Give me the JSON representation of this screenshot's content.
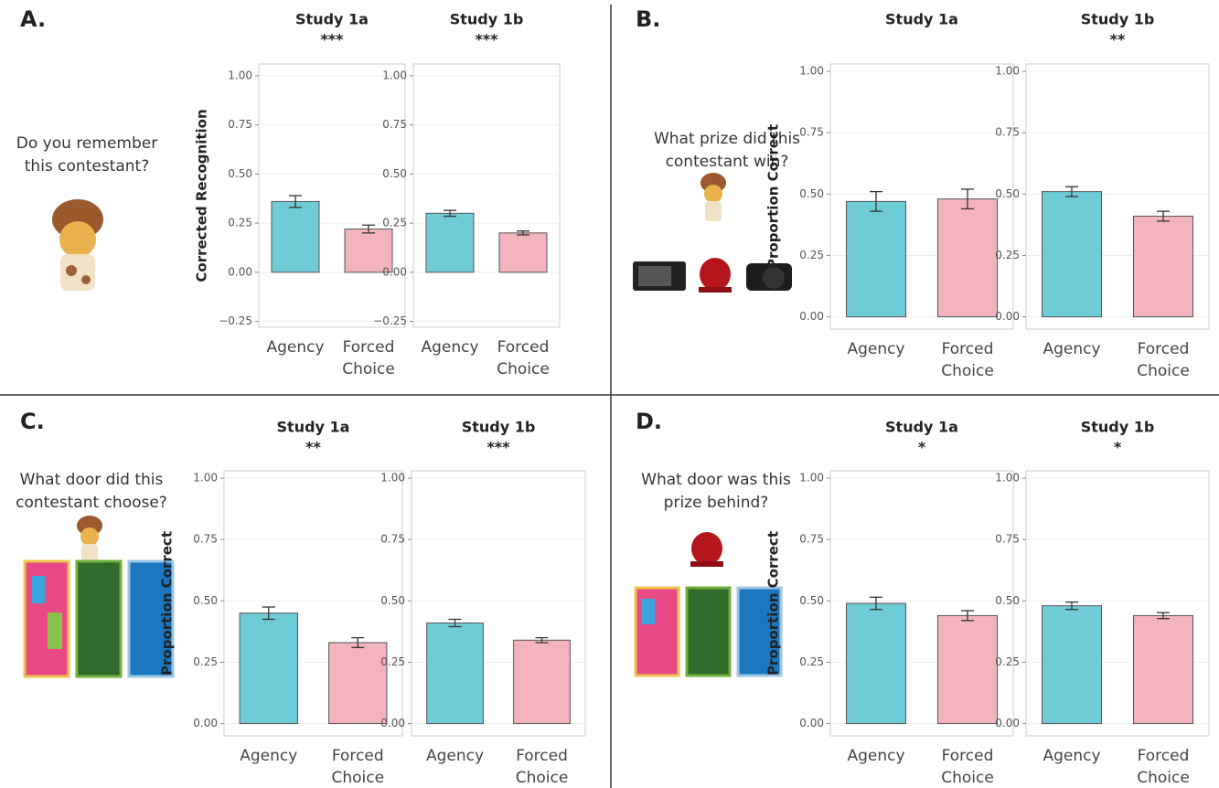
{
  "panels": [
    {
      "label": "A.",
      "question": [
        "Do you remember",
        "this contestant?"
      ]
    },
    {
      "label": "B.",
      "question": [
        "What prize did this",
        "contestant win?"
      ]
    },
    {
      "label": "C.",
      "question": [
        "What door did this",
        "contestant choose?"
      ]
    },
    {
      "label": "D.",
      "question": [
        "What door was this",
        "prize behind?"
      ]
    }
  ],
  "chart_data": [
    {
      "type": "bar",
      "title": "Study 1a",
      "subtitle": "***",
      "ylabel": "Corrected Recognition",
      "categories": [
        "Agency",
        "Forced Choice"
      ],
      "values": [
        0.36,
        0.22
      ],
      "errors": [
        0.03,
        0.02
      ],
      "colors": [
        "#6fcbd8",
        "#f4b4bd"
      ],
      "ylim": [
        -0.28,
        1.06
      ],
      "yticks": [
        {
          "value": -0.25,
          "label": "−0.25"
        },
        {
          "value": 0,
          "label": "0.00"
        },
        {
          "value": 0.25,
          "label": "0.25"
        },
        {
          "value": 0.5,
          "label": "0.50"
        },
        {
          "value": 0.75,
          "label": "0.75"
        },
        {
          "value": 1,
          "label": "1.00"
        }
      ],
      "grid": true
    },
    {
      "type": "bar",
      "title": "Study 1b",
      "subtitle": "***",
      "categories": [
        "Agency",
        "Forced Choice"
      ],
      "values": [
        0.3,
        0.2
      ],
      "errors": [
        0.015,
        0.01
      ],
      "colors": [
        "#6fcbd8",
        "#f4b4bd"
      ],
      "ylim": [
        -0.28,
        1.06
      ],
      "yticks": [
        {
          "value": -0.25,
          "label": "−0.25"
        },
        {
          "value": 0,
          "label": "0.00"
        },
        {
          "value": 0.25,
          "label": "0.25"
        },
        {
          "value": 0.5,
          "label": "0.50"
        },
        {
          "value": 0.75,
          "label": "0.75"
        },
        {
          "value": 1,
          "label": "1.00"
        }
      ],
      "grid": true
    },
    {
      "type": "bar",
      "title": "Study 1a",
      "ylabel": "Proportion Correct",
      "categories": [
        "Agency",
        "Forced Choice"
      ],
      "values": [
        0.47,
        0.48
      ],
      "errors": [
        0.04,
        0.04
      ],
      "colors": [
        "#6fcbd8",
        "#f4b4bd"
      ],
      "ylim": [
        -0.05,
        1.03
      ],
      "yticks": [
        {
          "value": 0,
          "label": "0.00"
        },
        {
          "value": 0.25,
          "label": "0.25"
        },
        {
          "value": 0.5,
          "label": "0.50"
        },
        {
          "value": 0.75,
          "label": "0.75"
        },
        {
          "value": 1,
          "label": "1.00"
        }
      ],
      "grid": true
    },
    {
      "type": "bar",
      "title": "Study 1b",
      "subtitle": "**",
      "categories": [
        "Agency",
        "Forced Choice"
      ],
      "values": [
        0.51,
        0.41
      ],
      "errors": [
        0.02,
        0.02
      ],
      "colors": [
        "#6fcbd8",
        "#f4b4bd"
      ],
      "ylim": [
        -0.05,
        1.03
      ],
      "yticks": [
        {
          "value": 0,
          "label": "0.00"
        },
        {
          "value": 0.25,
          "label": "0.25"
        },
        {
          "value": 0.5,
          "label": "0.50"
        },
        {
          "value": 0.75,
          "label": "0.75"
        },
        {
          "value": 1,
          "label": "1.00"
        }
      ],
      "grid": true
    },
    {
      "type": "bar",
      "title": "Study 1a",
      "subtitle": "**",
      "ylabel": "Proportion Correct",
      "categories": [
        "Agency",
        "Forced Choice"
      ],
      "values": [
        0.45,
        0.33
      ],
      "errors": [
        0.025,
        0.02
      ],
      "colors": [
        "#6fcbd8",
        "#f4b4bd"
      ],
      "ylim": [
        -0.05,
        1.03
      ],
      "yticks": [
        {
          "value": 0,
          "label": "0.00"
        },
        {
          "value": 0.25,
          "label": "0.25"
        },
        {
          "value": 0.5,
          "label": "0.50"
        },
        {
          "value": 0.75,
          "label": "0.75"
        },
        {
          "value": 1,
          "label": "1.00"
        }
      ],
      "grid": true
    },
    {
      "type": "bar",
      "title": "Study 1b",
      "subtitle": "***",
      "categories": [
        "Agency",
        "Forced Choice"
      ],
      "values": [
        0.41,
        0.34
      ],
      "errors": [
        0.015,
        0.01
      ],
      "colors": [
        "#6fcbd8",
        "#f4b4bd"
      ],
      "ylim": [
        -0.05,
        1.03
      ],
      "yticks": [
        {
          "value": 0,
          "label": "0.00"
        },
        {
          "value": 0.25,
          "label": "0.25"
        },
        {
          "value": 0.5,
          "label": "0.50"
        },
        {
          "value": 0.75,
          "label": "0.75"
        },
        {
          "value": 1,
          "label": "1.00"
        }
      ],
      "grid": true
    },
    {
      "type": "bar",
      "title": "Study 1a",
      "subtitle": "*",
      "ylabel": "Proportion Correct",
      "categories": [
        "Agency",
        "Forced Choice"
      ],
      "values": [
        0.49,
        0.44
      ],
      "errors": [
        0.025,
        0.02
      ],
      "colors": [
        "#6fcbd8",
        "#f4b4bd"
      ],
      "ylim": [
        -0.05,
        1.03
      ],
      "yticks": [
        {
          "value": 0,
          "label": "0.00"
        },
        {
          "value": 0.25,
          "label": "0.25"
        },
        {
          "value": 0.5,
          "label": "0.50"
        },
        {
          "value": 0.75,
          "label": "0.75"
        },
        {
          "value": 1,
          "label": "1.00"
        }
      ],
      "grid": true
    },
    {
      "type": "bar",
      "title": "Study 1b",
      "subtitle": "*",
      "categories": [
        "Agency",
        "Forced Choice"
      ],
      "values": [
        0.48,
        0.44
      ],
      "errors": [
        0.015,
        0.012
      ],
      "colors": [
        "#6fcbd8",
        "#f4b4bd"
      ],
      "ylim": [
        -0.05,
        1.03
      ],
      "yticks": [
        {
          "value": 0,
          "label": "0.00"
        },
        {
          "value": 0.25,
          "label": "0.25"
        },
        {
          "value": 0.5,
          "label": "0.50"
        },
        {
          "value": 0.75,
          "label": "0.75"
        },
        {
          "value": 1,
          "label": "1.00"
        }
      ],
      "grid": true
    }
  ]
}
